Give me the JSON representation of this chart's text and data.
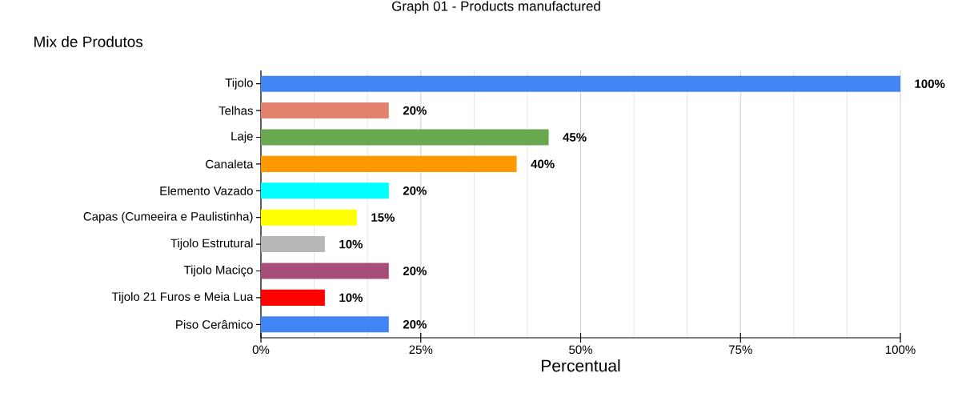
{
  "chart_data": {
    "type": "bar",
    "orientation": "horizontal",
    "title": "Mix de Produtos",
    "xlabel": "Percentual",
    "annotations": [
      "Graph 01 - Products manufactured"
    ],
    "categories": [
      "Tijolo",
      "Telhas",
      "Laje",
      "Canaleta",
      "Elemento Vazado",
      "Capas (Cumeeira e Paulistinha)",
      "Tijolo Estrutural",
      "Tijolo Maciço",
      "Tijolo 21 Furos e Meia Lua",
      "Piso Cerâmico"
    ],
    "values": [
      100,
      20,
      45,
      40,
      20,
      15,
      10,
      20,
      10,
      20
    ],
    "value_labels": [
      "100%",
      "20%",
      "45%",
      "40%",
      "20%",
      "15%",
      "10%",
      "20%",
      "10%",
      "20%"
    ],
    "colors": [
      "#4285f4",
      "#e2826e",
      "#6aa84f",
      "#ff9900",
      "#00ffff",
      "#ffff00",
      "#b7b7b7",
      "#a64d79",
      "#ff0000",
      "#4285f4"
    ],
    "xlim": [
      0,
      100
    ],
    "xticks": [
      {
        "value": 0,
        "label": "0%"
      },
      {
        "value": 25,
        "label": "25%"
      },
      {
        "value": 50,
        "label": "50%"
      },
      {
        "value": 75,
        "label": "75%"
      },
      {
        "value": 100,
        "label": "100%"
      }
    ],
    "grid": "x"
  }
}
